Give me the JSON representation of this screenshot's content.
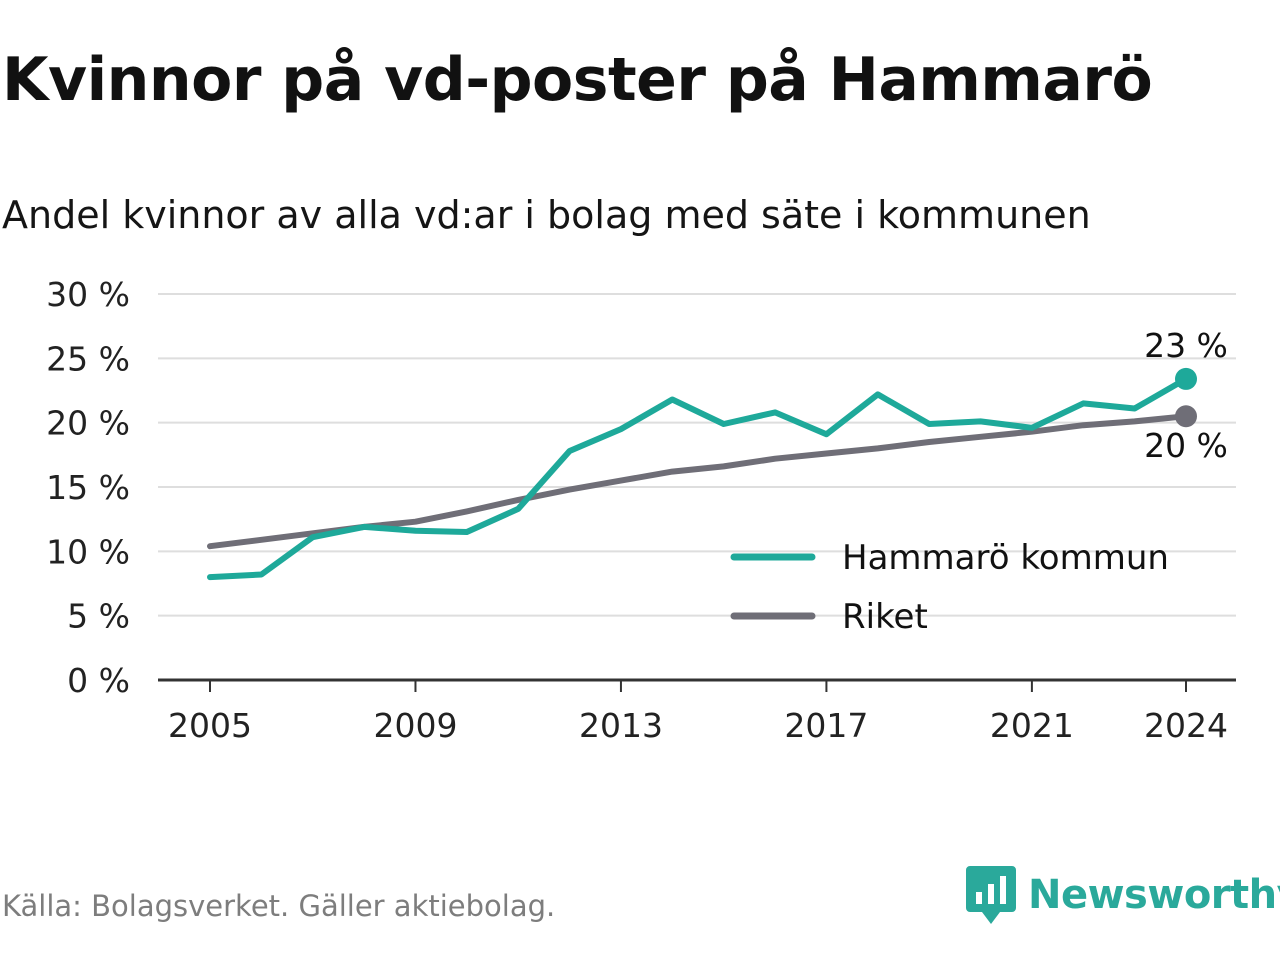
{
  "header": {
    "title": "Kvinnor på vd-poster på Hammarö",
    "subtitle": "Andel kvinnor av alla vd:ar i bolag med säte i kommunen"
  },
  "footer": {
    "source": "Källa: Bolagsverket. Gäller aktiebolag.",
    "brand": "Newsworthy",
    "brand_icon": "newsworthy-logo-icon"
  },
  "chart_data": {
    "type": "line",
    "title": "Kvinnor på vd-poster på Hammarö",
    "subtitle": "Andel kvinnor av alla vd:ar i bolag med säte i kommunen",
    "xlabel": "",
    "ylabel": "",
    "x": [
      2005,
      2006,
      2007,
      2008,
      2009,
      2010,
      2011,
      2012,
      2013,
      2014,
      2015,
      2016,
      2017,
      2018,
      2019,
      2020,
      2021,
      2022,
      2023,
      2024
    ],
    "xlim": [
      2004,
      2025
    ],
    "x_ticks": [
      2005,
      2009,
      2013,
      2017,
      2021,
      2024
    ],
    "x_tick_labels": [
      "2005",
      "2009",
      "2013",
      "2017",
      "2021",
      "2024"
    ],
    "ylim": [
      0,
      30
    ],
    "y_ticks": [
      0,
      5,
      10,
      15,
      20,
      25,
      30
    ],
    "y_tick_labels": [
      "0 %",
      "5 %",
      "10 %",
      "15 %",
      "20 %",
      "25 %",
      "30 %"
    ],
    "grid": true,
    "legend_position": "bottom-right",
    "series": [
      {
        "name": "Hammarö kommun",
        "color": "#1ea99a",
        "values": [
          8.0,
          8.2,
          11.1,
          11.9,
          11.6,
          11.5,
          13.3,
          17.8,
          19.5,
          21.8,
          19.9,
          20.8,
          19.1,
          22.2,
          19.9,
          20.1,
          19.6,
          21.5,
          21.1,
          23.4
        ],
        "end_label": "23 %"
      },
      {
        "name": "Riket",
        "color": "#6f6e77",
        "values": [
          10.4,
          10.9,
          11.4,
          11.9,
          12.3,
          13.1,
          14.0,
          14.8,
          15.5,
          16.2,
          16.6,
          17.2,
          17.6,
          18.0,
          18.5,
          18.9,
          19.3,
          19.8,
          20.1,
          20.5
        ],
        "end_label": "20 %"
      }
    ]
  }
}
